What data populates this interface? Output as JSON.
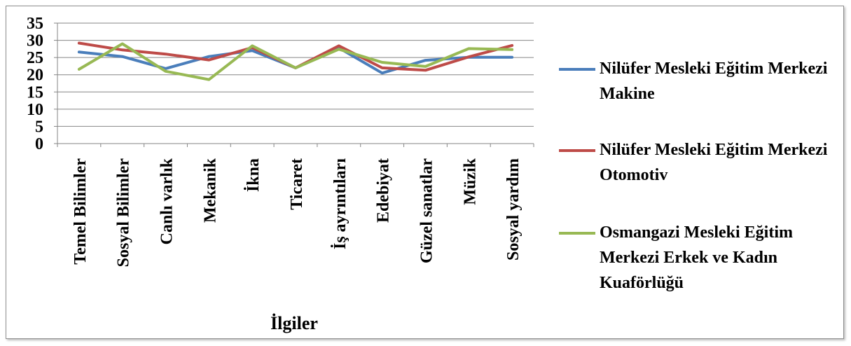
{
  "chart_data": {
    "type": "line",
    "title": "",
    "xlabel": "İlgiler",
    "ylabel": "",
    "ylim": [
      0,
      35
    ],
    "yticks": [
      0,
      5,
      10,
      15,
      20,
      25,
      30,
      35
    ],
    "grid": "horizontal",
    "legend_position": "right",
    "categories": [
      "Temel Bilimler",
      "Sosyal Bilimler",
      "Canlı varlık",
      "Mekanik",
      "İkna",
      "Ticaret",
      "İş ayrıntıları",
      "Edebiyat",
      "Güzel sanatlar",
      "Müzik",
      "Sosyal yardım"
    ],
    "series": [
      {
        "name": "Nilüfer Mesleki Eğitim Merkezi Makine",
        "color": "#4A7EBB",
        "values": [
          26.6,
          25.3,
          21.8,
          25.3,
          27.0,
          22.0,
          27.8,
          20.5,
          24.2,
          25.1,
          25.1
        ]
      },
      {
        "name": "Nilüfer Mesleki Eğitim Merkezi Otomotiv",
        "color": "#BE4B48",
        "values": [
          29.2,
          27.2,
          26.0,
          24.3,
          27.9,
          22.0,
          28.4,
          22.0,
          21.3,
          25.2,
          28.5
        ]
      },
      {
        "name": "Osmangazi Mesleki Eğitim Merkezi Erkek ve Kadın Kuaförlüğü",
        "color": "#98B954",
        "values": [
          21.6,
          29.0,
          21.0,
          18.6,
          28.4,
          22.0,
          27.4,
          23.6,
          22.4,
          27.6,
          27.3
        ]
      }
    ]
  }
}
